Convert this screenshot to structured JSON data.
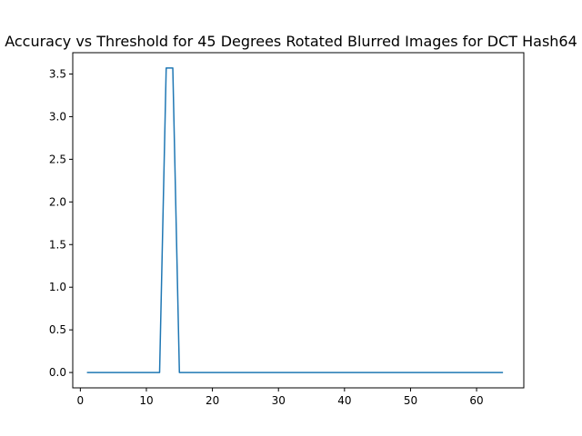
{
  "chart_data": {
    "type": "line",
    "title": "Accuracy vs Threshold for 45 Degrees Rotated Blurred Images for DCT Hash64",
    "xlabel": "",
    "ylabel": "",
    "xlim": [
      -1.15,
      67.15
    ],
    "ylim": [
      -0.18,
      3.75
    ],
    "xticks": [
      0,
      10,
      20,
      30,
      40,
      50,
      60
    ],
    "yticks": [
      0.0,
      0.5,
      1.0,
      1.5,
      2.0,
      2.5,
      3.0,
      3.5
    ],
    "grid": false,
    "series": [
      {
        "color": "#1f77b4",
        "x": [
          1,
          2,
          3,
          4,
          5,
          6,
          7,
          8,
          9,
          10,
          11,
          12,
          13,
          14,
          15,
          16,
          17,
          18,
          19,
          20,
          21,
          22,
          23,
          24,
          25,
          26,
          27,
          28,
          29,
          30,
          31,
          32,
          33,
          34,
          35,
          36,
          37,
          38,
          39,
          40,
          41,
          42,
          43,
          44,
          45,
          46,
          47,
          48,
          49,
          50,
          51,
          52,
          53,
          54,
          55,
          56,
          57,
          58,
          59,
          60,
          61,
          62,
          63,
          64
        ],
        "y": [
          0,
          0,
          0,
          0,
          0,
          0,
          0,
          0,
          0,
          0,
          0,
          0,
          3.57,
          3.57,
          0,
          0,
          0,
          0,
          0,
          0,
          0,
          0,
          0,
          0,
          0,
          0,
          0,
          0,
          0,
          0,
          0,
          0,
          0,
          0,
          0,
          0,
          0,
          0,
          0,
          0,
          0,
          0,
          0,
          0,
          0,
          0,
          0,
          0,
          0,
          0,
          0,
          0,
          0,
          0,
          0,
          0,
          0,
          0,
          0,
          0,
          0,
          0,
          0,
          0
        ]
      }
    ]
  }
}
